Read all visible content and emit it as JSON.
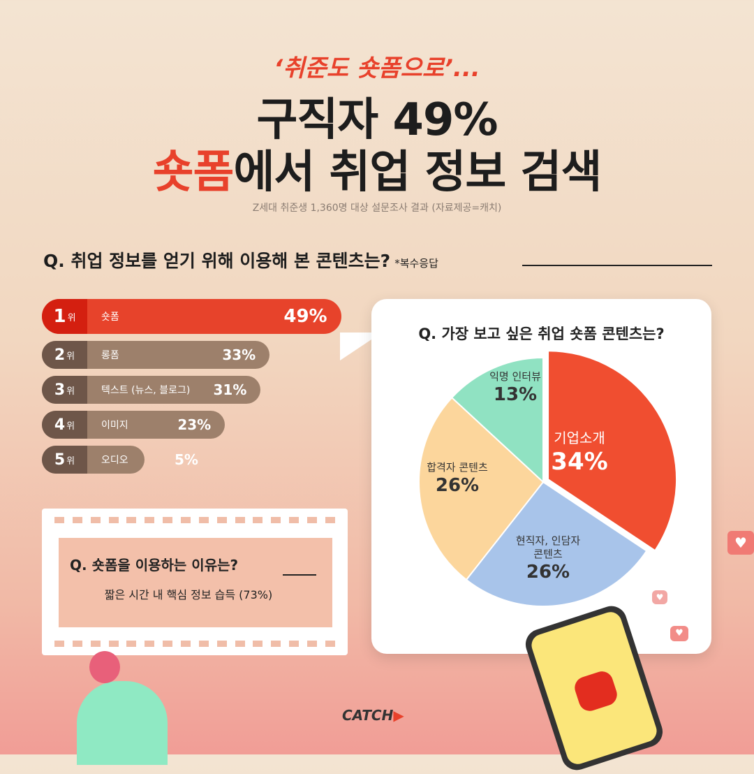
{
  "header": {
    "kicker": "‘취준도 숏폼으로’...",
    "title_line1": "구직자 49%",
    "title_line2_highlight": "숏폼",
    "title_line2_rest": "에서 취업 정보 검색",
    "subtitle": "Z세대 취준생 1,360명 대상 설문조사 결과 (자료제공=캐치)"
  },
  "q1": {
    "question": "Q. 취업 정보를 얻기 위해 이용해 본 콘텐츠는?",
    "note": "*복수응답"
  },
  "q2": {
    "question": "Q. 가장 보고 싶은 취업 숏폼 콘텐츠는?"
  },
  "q3": {
    "question": "Q. 숏폼을 이용하는 이유는?",
    "answer": "짧은 시간 내 핵심 정보 습득 (73%)"
  },
  "brand": {
    "logo_main": "CATCH",
    "logo_mark": "▶"
  },
  "colors": {
    "accent": "#e8412b",
    "bar": "#9d806b",
    "rank": "#6e5649"
  },
  "chart_data": [
    {
      "type": "bar",
      "orientation": "horizontal",
      "rank_suffix": "위",
      "categories": [
        "숏폼",
        "롱폼",
        "텍스트 (뉴스, 블로그)",
        "이미지",
        "오디오"
      ],
      "ranks": [
        "1",
        "2",
        "3",
        "4",
        "5"
      ],
      "values": [
        49,
        33,
        31,
        23,
        5
      ],
      "labels": [
        "49%",
        "33%",
        "31%",
        "23%",
        "5%"
      ]
    },
    {
      "type": "pie",
      "slices": [
        {
          "name": "기업소개",
          "value": 34,
          "label": "34%",
          "color": "#f04e30"
        },
        {
          "name": "현직자, 인담자 콘텐츠",
          "value": 26,
          "label": "26%",
          "color": "#a8c4ea"
        },
        {
          "name": "합격자 콘텐츠",
          "value": 26,
          "label": "26%",
          "color": "#fcd69c"
        },
        {
          "name": "익명 인터뷰",
          "value": 13,
          "label": "13%",
          "color": "#90e2c2"
        }
      ]
    }
  ]
}
